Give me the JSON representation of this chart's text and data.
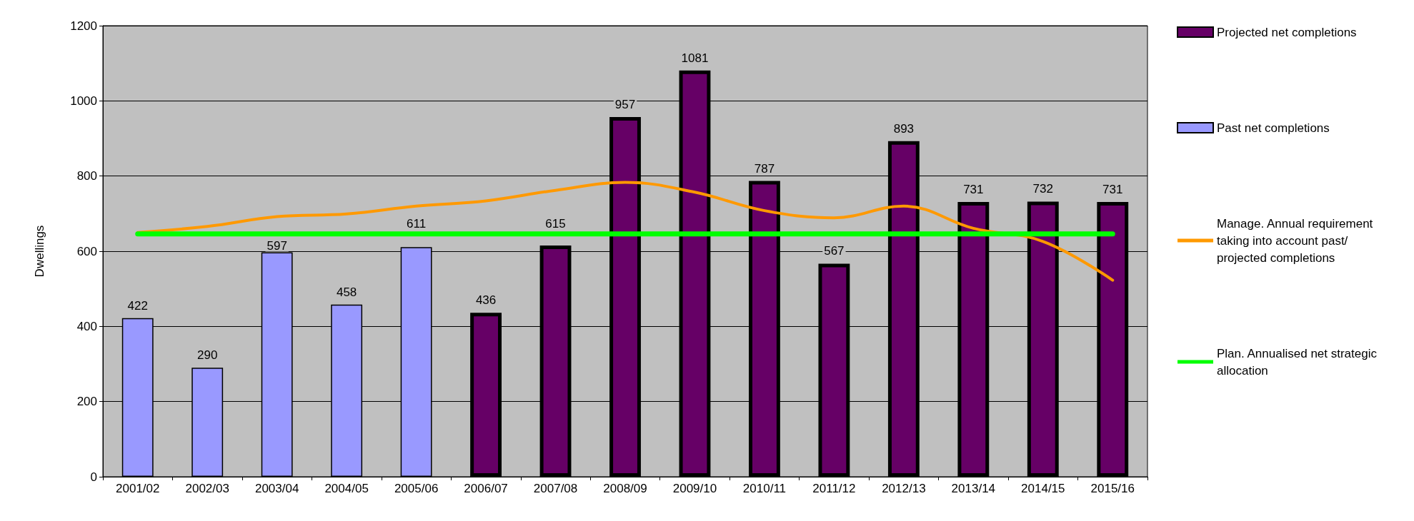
{
  "chart_data": {
    "type": "bar",
    "ylabel": "Dwellings",
    "categories": [
      "2001/02",
      "2002/03",
      "2003/04",
      "2004/05",
      "2005/06",
      "2006/07",
      "2007/08",
      "2008/09",
      "2009/10",
      "2010/11",
      "2011/12",
      "2012/13",
      "2013/14",
      "2014/15",
      "2015/16"
    ],
    "series": [
      {
        "name": "Projected net completions",
        "color": "#660066",
        "values": [
          null,
          null,
          null,
          null,
          null,
          436,
          615,
          957,
          1081,
          787,
          567,
          893,
          731,
          732,
          731
        ],
        "value_labels": [
          null,
          null,
          null,
          null,
          null,
          "436",
          "615",
          "957",
          "1081",
          "787",
          "567",
          "893",
          "731",
          "732",
          "731"
        ]
      },
      {
        "name": "Past net completions",
        "color": "#9999ff",
        "values": [
          422,
          290,
          597,
          458,
          611,
          null,
          null,
          null,
          null,
          null,
          null,
          null,
          null,
          null,
          null
        ],
        "value_labels": [
          "422",
          "290",
          "597",
          "458",
          "611",
          null,
          null,
          null,
          null,
          null,
          null,
          null,
          null,
          null,
          null
        ]
      },
      {
        "name": "Manage. Annual requirement taking into account past/projected completions",
        "type": "line",
        "color": "#ff9900",
        "values": [
          650,
          666,
          692,
          699,
          720,
          734,
          762,
          783,
          757,
          708,
          689,
          720,
          661,
          626,
          523
        ]
      },
      {
        "name": "Plan. Annualised net strategic allocation",
        "type": "line",
        "color": "#00ff00",
        "values": [
          646,
          646,
          646,
          646,
          646,
          646,
          646,
          646,
          646,
          646,
          646,
          646,
          646,
          646,
          646
        ]
      }
    ],
    "ylim": [
      0,
      1200
    ],
    "yticks": [
      0,
      200,
      400,
      600,
      800,
      1000,
      1200
    ],
    "grid": "y",
    "legend": "right",
    "marker": "none",
    "line_style": "solid"
  }
}
